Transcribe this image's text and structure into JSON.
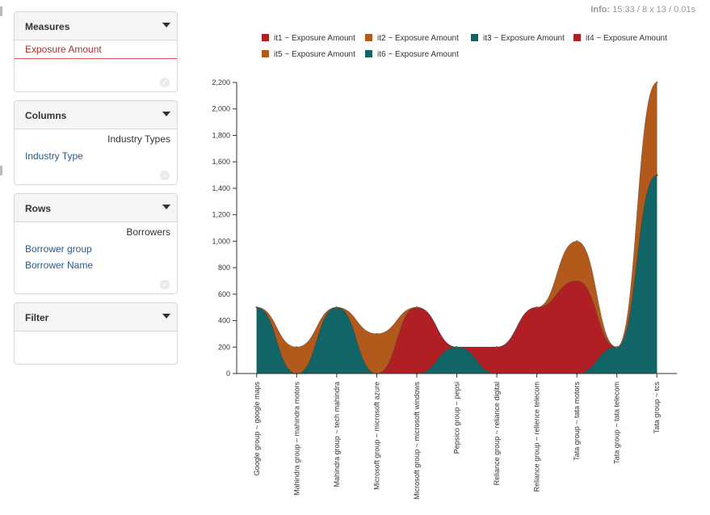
{
  "info": {
    "label": "Info:",
    "time": "15:33",
    "dims": "/ 8 x 13",
    "duration": "/ 0.01s"
  },
  "measures": {
    "title": "Measures",
    "items": [
      "Exposure Amount"
    ]
  },
  "columns": {
    "title": "Columns",
    "header": "Industry Types",
    "items": [
      "Industry Type"
    ]
  },
  "rows": {
    "title": "Rows",
    "header": "Borrowers",
    "items": [
      "Borrower group",
      "Borrower Name"
    ]
  },
  "filter": {
    "title": "Filter"
  },
  "chart_data": {
    "type": "area",
    "stacked": true,
    "interpolation": "smooth",
    "categories": [
      "Google group ~ google maps",
      "Mahindra group ~ mahindra motors",
      "Mahindra group ~ tech mahindra",
      "Microsoft group ~ microsoft azure",
      "Microsoft group ~ microsoft windows",
      "Pepsico group ~ pepsi",
      "Reliance group ~ reliance digital",
      "Reliance group ~ relience telecom",
      "Tata group ~ tata motors",
      "Tata group ~ tata telecom",
      "Tata group ~ tcs"
    ],
    "series": [
      {
        "name": "it1 ~ Exposure Amount",
        "color": "#b01f24",
        "values": [
          0,
          0,
          0,
          0,
          0,
          0,
          0,
          0,
          0,
          0,
          0
        ]
      },
      {
        "name": "it2 ~ Exposure Amount",
        "color": "#b15a1c",
        "values": [
          0,
          0,
          0,
          0,
          0,
          0,
          0,
          0,
          0,
          0,
          0
        ]
      },
      {
        "name": "it3 ~ Exposure Amount",
        "color": "#126566",
        "values": [
          500,
          0,
          500,
          0,
          0,
          200,
          0,
          0,
          0,
          200,
          1500
        ]
      },
      {
        "name": "it4 ~ Exposure Amount",
        "color": "#b01f24",
        "values": [
          0,
          0,
          0,
          0,
          500,
          0,
          200,
          500,
          700,
          0,
          0
        ]
      },
      {
        "name": "it5 ~ Exposure Amount",
        "color": "#b15a1c",
        "values": [
          0,
          200,
          0,
          300,
          0,
          0,
          0,
          0,
          300,
          0,
          700
        ]
      },
      {
        "name": "it6 ~ Exposure Amount",
        "color": "#126566",
        "values": [
          0,
          0,
          0,
          0,
          0,
          0,
          0,
          0,
          0,
          0,
          0
        ]
      }
    ],
    "ylim": [
      0,
      2200
    ],
    "yticks": [
      "0",
      "200",
      "400",
      "600",
      "800",
      "1,000",
      "1,200",
      "1,400",
      "1,600",
      "1,800",
      "2,000",
      "2,200"
    ],
    "legend_position": "top"
  }
}
